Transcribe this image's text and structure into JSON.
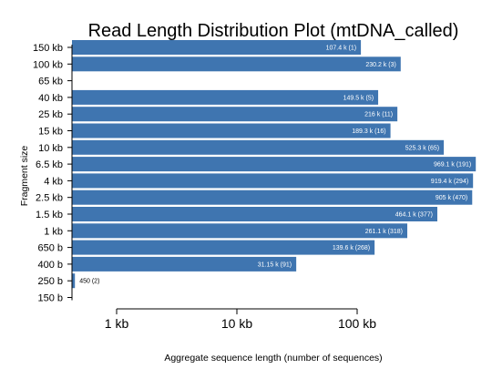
{
  "chart_data": {
    "type": "bar",
    "orientation": "horizontal",
    "title": "Read Length Distribution Plot (mtDNA_called)",
    "xlabel": "Aggregate sequence length (number of sequences)",
    "ylabel": "Fragment size",
    "x_scale": "log",
    "x_ticks": [
      {
        "value": 1000,
        "label": "1 kb"
      },
      {
        "value": 10000,
        "label": "10 kb"
      },
      {
        "value": 100000,
        "label": "100 kb"
      }
    ],
    "categories": [
      "150 kb",
      "100 kb",
      "65 kb",
      "40 kb",
      "25 kb",
      "15 kb",
      "10 kb",
      "6.5 kb",
      "4 kb",
      "2.5 kb",
      "1.5 kb",
      "1 kb",
      "650 b",
      "400 b",
      "250 b",
      "150 b"
    ],
    "values": [
      107400,
      230200,
      null,
      149500,
      216000,
      189300,
      525300,
      969100,
      919400,
      905000,
      464100,
      261100,
      139600,
      31150,
      450,
      null
    ],
    "data_labels": [
      "107.4 k (1)",
      "230.2 k (3)",
      "",
      "149.5 k (5)",
      "216 k (11)",
      "189.3 k (16)",
      "525.3 k (65)",
      "969.1 k (191)",
      "919.4 k (294)",
      "905 k (470)",
      "464.1 k (377)",
      "261.1 k (318)",
      "139.6 k (268)",
      "31.15 k (91)",
      "450  (2)",
      ""
    ],
    "bar_color": "#3f75b0",
    "bar_label_color": "#ffffff",
    "grid": false,
    "legend": "none"
  }
}
